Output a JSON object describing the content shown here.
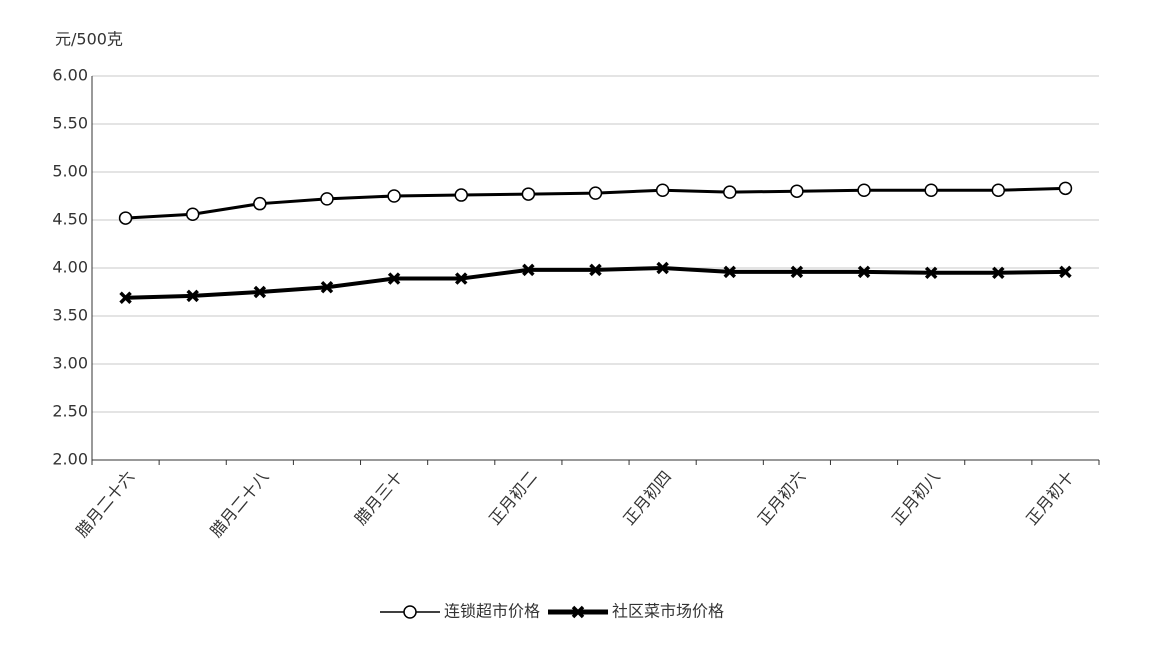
{
  "chart_data": {
    "type": "line",
    "y_label": "元/500克",
    "categories": [
      "腊月二十六",
      null,
      "腊月二十八",
      null,
      "腊月三十",
      null,
      "正月初二",
      null,
      "正月初四",
      null,
      "正月初六",
      null,
      "正月初八",
      null,
      "正月初十"
    ],
    "series": [
      {
        "name": "连锁超市价格",
        "color": "#000000",
        "marker": "circle",
        "values": [
          4.52,
          4.56,
          4.67,
          4.72,
          4.75,
          4.76,
          4.77,
          4.78,
          4.81,
          4.79,
          4.8,
          4.81,
          4.81,
          4.81,
          4.83
        ]
      },
      {
        "name": "社区菜市场价格",
        "color": "#000000",
        "marker": "x",
        "values": [
          3.69,
          3.71,
          3.75,
          3.8,
          3.89,
          3.89,
          3.98,
          3.98,
          4.0,
          3.96,
          3.96,
          3.96,
          3.95,
          3.95,
          3.96
        ]
      }
    ],
    "ylim": [
      2,
      6
    ],
    "yticks": [
      {
        "value": 2,
        "label": "2.00"
      },
      {
        "value": 2.5,
        "label": "2.50"
      },
      {
        "value": 3,
        "label": "3.00"
      },
      {
        "value": 3.5,
        "label": "3.50"
      },
      {
        "value": 4,
        "label": "4.00"
      },
      {
        "value": 4.5,
        "label": "4.50"
      },
      {
        "value": 5,
        "label": "5.00"
      },
      {
        "value": 5.5,
        "label": "5.50"
      },
      {
        "value": 6,
        "label": "6.00"
      }
    ],
    "grid": true,
    "legend": "bottom"
  }
}
